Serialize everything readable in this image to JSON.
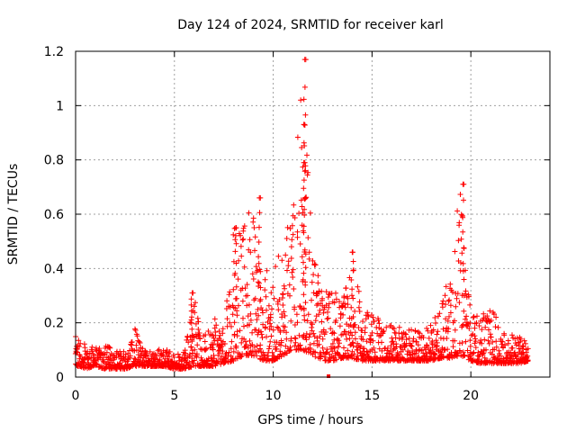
{
  "chart_data": {
    "type": "scatter",
    "title": "Day 124 of 2024, SRMTID for receiver karl",
    "xlabel": "GPS time / hours",
    "ylabel": "SRMTID / TECUs",
    "xlim": [
      0,
      24
    ],
    "ylim": [
      0,
      1.2
    ],
    "x_ticks": [
      0,
      5,
      10,
      15,
      20
    ],
    "x_tick_labels": [
      "0",
      "5",
      "10",
      "15",
      "20"
    ],
    "y_ticks": [
      0,
      0.2,
      0.4,
      0.6,
      0.8,
      1.0,
      1.2
    ],
    "y_tick_labels": [
      "0",
      "0.2",
      "0.4",
      "0.6",
      "0.8",
      "1",
      "1.2"
    ],
    "grid": true,
    "marker": "plus",
    "color": "#ff0000",
    "series": [
      {
        "name": "SRMTID",
        "envelope_x": [
          0,
          0.5,
          1,
          1.5,
          2,
          2.5,
          3,
          3.5,
          4,
          4.5,
          5,
          5.5,
          6,
          6.5,
          7,
          7.5,
          8,
          8.5,
          9,
          9.5,
          10,
          10.5,
          11,
          11.5,
          12,
          12.5,
          13,
          13.5,
          14,
          14.5,
          15,
          15.5,
          16,
          16.5,
          17,
          17.5,
          18,
          18.5,
          19,
          19.5,
          20,
          20.5,
          21,
          21.5,
          22,
          22.5,
          22.9
        ],
        "envelope_low": [
          0.04,
          0.03,
          0.04,
          0.03,
          0.03,
          0.03,
          0.04,
          0.04,
          0.04,
          0.04,
          0.03,
          0.03,
          0.04,
          0.04,
          0.04,
          0.05,
          0.06,
          0.08,
          0.08,
          0.06,
          0.06,
          0.08,
          0.1,
          0.1,
          0.08,
          0.06,
          0.06,
          0.07,
          0.07,
          0.06,
          0.06,
          0.06,
          0.06,
          0.06,
          0.06,
          0.06,
          0.06,
          0.07,
          0.07,
          0.08,
          0.06,
          0.05,
          0.05,
          0.05,
          0.05,
          0.05,
          0.06
        ],
        "envelope_high": [
          0.15,
          0.12,
          0.11,
          0.12,
          0.1,
          0.1,
          0.18,
          0.11,
          0.1,
          0.11,
          0.09,
          0.1,
          0.31,
          0.15,
          0.22,
          0.18,
          0.55,
          0.58,
          0.66,
          0.4,
          0.4,
          0.5,
          0.64,
          1.17,
          0.45,
          0.34,
          0.33,
          0.28,
          0.47,
          0.25,
          0.25,
          0.2,
          0.2,
          0.18,
          0.18,
          0.16,
          0.2,
          0.28,
          0.45,
          0.71,
          0.24,
          0.22,
          0.27,
          0.18,
          0.16,
          0.15,
          0.12
        ],
        "peaks": [
          {
            "x": 11.6,
            "y": 1.17
          },
          {
            "x": 11.55,
            "y": 0.93
          },
          {
            "x": 11.6,
            "y": 0.79
          },
          {
            "x": 9.3,
            "y": 0.66
          },
          {
            "x": 19.6,
            "y": 0.71
          },
          {
            "x": 8.1,
            "y": 0.55
          },
          {
            "x": 14.0,
            "y": 0.46
          },
          {
            "x": 5.9,
            "y": 0.31
          }
        ],
        "outliers": [
          {
            "x": 12.8,
            "y": 0.0
          }
        ]
      }
    ]
  }
}
